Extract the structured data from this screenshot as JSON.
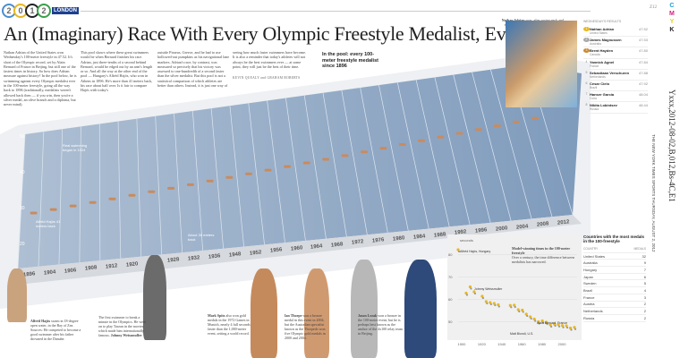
{
  "masthead": {
    "digits": [
      "2",
      "0",
      "1",
      "2"
    ],
    "city": "LONDON",
    "section_code": "Z12",
    "cmyk": [
      "C",
      "M",
      "Y",
      "K"
    ]
  },
  "headline": "An (Imaginary) Race With Every Olympic Freestyle Medalist, Ever",
  "body_columns": [
    "Nathan Adrian of the United States won Wednesday's 100-meter freestyle in 47.52. It's short of the Olympic record, set by Alain Bernard of France in Beijing, but still one of the fastest times in history. So how does Adrian measure against history? In the pool below, he is swimming against every Olympic medalist ever in the 100-meter freestyle, going all the way back to 1896 (traditionally, medalists weren't allowed back then — if you win, then you're a silver medal, an olive branch and a diploma, but never mind).",
    "This pool shows where these great swimmers would be when Bernard finishes his race. Adrian, just three-tenths of a second behind Bernard, would be edged out by an arm's length or so. And all the way at the other end of the pool — Hungary's Alfréd Hajós, who won in Athens in 1896. He's more than 41 meters back, his race about half over. Is it fair to compare Hajós with today's",
    "outside Piraeus, Greece, and he had to use hollowed-out pumpkins as his navigational lane markers. Adrian's race, by contrast, was measured so precisely that his victory was assessed to one-hundredth of a second faster than the silver medalist. But this pool is not a statistical comparison of which athletes are better than others. Instead, it is just one way of",
    "seeing how much faster swimmers have become. It is also a reminder that today's athletes will not always be the best swimmers ever — at some point, they will just be the best of their time."
  ],
  "byline": "KEVIN QUEALY and GRAHAM ROBERTS",
  "pool_callout": "In the pool: every 100-meter freestyle medalist since 1896",
  "pool": {
    "distance_labels": [
      "50",
      "40",
      "30",
      "20"
    ],
    "years": [
      "1896",
      "1904",
      "1906",
      "1908",
      "1912",
      "1920",
      "1924",
      "1928",
      "1932",
      "1936",
      "1948",
      "1952",
      "1956",
      "1960",
      "1964",
      "1968",
      "1972",
      "1976",
      "1980",
      "1984",
      "1988",
      "1992",
      "1996",
      "2000",
      "2004",
      "2008",
      "2012"
    ],
    "annotations": [
      "Real swimming began in 1924",
      "Alfréd Hajós 41 meters back",
      "About 30 meters back"
    ]
  },
  "photo_caption": {
    "name": "Nathan Adrian",
    "text": "won, after racing neck and neck with James Magnussen of Australia.",
    "credit": "DOUG MILLS/THE NEW YORK TIMES"
  },
  "results": {
    "title": "WEDNESDAY'S RESULTS",
    "rows": [
      {
        "rank": "1",
        "name": "Nathan Adrian",
        "country": "United States",
        "time": "47.52",
        "medal": "#e8b820"
      },
      {
        "rank": "2",
        "name": "James Magnussen",
        "country": "Australia",
        "time": "47.53",
        "medal": "#a8a8a8"
      },
      {
        "rank": "3",
        "name": "Brent Hayden",
        "country": "Canada",
        "time": "47.80",
        "medal": "#c88a30"
      },
      {
        "rank": "4",
        "name": "Yannick Agnel",
        "country": "France",
        "time": "47.84",
        "medal": ""
      },
      {
        "rank": "5",
        "name": "Sebastiaan Verschuren",
        "country": "Netherlands",
        "time": "47.88",
        "medal": ""
      },
      {
        "rank": "6",
        "name": "Cesar Cielo",
        "country": "Brazil",
        "time": "47.92",
        "medal": ""
      },
      {
        "rank": "7",
        "name": "Hanser Garcia",
        "country": "Cuba",
        "time": "48.04",
        "medal": ""
      },
      {
        "rank": "8",
        "name": "Nikita Lobintsev",
        "country": "Russia",
        "time": "48.44",
        "medal": ""
      }
    ]
  },
  "dateline": "THE NEW YORK TIMES SPORTS THURSDAY, AUGUST 2, 2012",
  "slug": "Yxxx,2012-08-02,B,012,Bs-4C,E1",
  "captions": [
    {
      "name": "Alfréd Hajós",
      "text": "swam in 18-degree open water, in the Bay of Zea. Sources: He competed to become a good swimmer after his father drowned in the Danube."
    },
    {
      "name": "Johnny Weissmuller",
      "text": "The first swimmer to break a minute in the Olympics. He went on to play Tarzan in the movies, which made him internationally famous."
    },
    {
      "name": "Mark Spitz",
      "text": "also won gold medals in the 1972 Games in Munich, nearly 4 full seconds faster than the 1,000-meter event, setting a world record."
    },
    {
      "name": "Ian Thorpe",
      "text": "won a bronze medal in this event in 2004, but the Australian specialist known as the Thorpedo won five Olympic gold medals in 2000 and 2004."
    },
    {
      "name": "Jason Lezak",
      "text": "won a bronze in the 100-meter event, but he is perhaps best known as the anchor of the 4x100 relay team in Beijing."
    }
  ],
  "chart_data": {
    "type": "scatter",
    "title": "Model-winning times in the 100-meter freestyle",
    "subtitle": "Over a century, the time difference between medalists has narrowed.",
    "xlabel": "",
    "ylabel": "seconds",
    "xlim": [
      1896,
      2012
    ],
    "ylim": [
      45,
      85
    ],
    "x_ticks": [
      "1900",
      "1920",
      "1940",
      "1960",
      "1980",
      "2000"
    ],
    "y_ticks": [
      "80",
      "70",
      "60",
      "50"
    ],
    "x": [
      1896,
      1904,
      1908,
      1912,
      1920,
      1924,
      1928,
      1932,
      1936,
      1948,
      1952,
      1956,
      1960,
      1964,
      1968,
      1972,
      1976,
      1980,
      1984,
      1988,
      1992,
      1996,
      2000,
      2004,
      2008,
      2012
    ],
    "y": [
      82.2,
      62.8,
      65.6,
      63.4,
      61.4,
      59.0,
      58.6,
      58.2,
      57.6,
      57.3,
      57.4,
      55.4,
      55.2,
      53.4,
      52.2,
      51.2,
      50.0,
      50.4,
      49.8,
      48.6,
      49.0,
      48.7,
      48.3,
      48.2,
      47.2,
      47.5
    ],
    "annotations": [
      "Alfréd Hajós, Hungary",
      "Matt Biondi, U.S.",
      "Alain Bernard, France",
      "Johnny Weissmuller"
    ]
  },
  "countries": {
    "title": "Countries with the most medals in the 100-freestyle",
    "headers": [
      "COUNTRY",
      "MEDALS"
    ],
    "rows": [
      [
        "United States",
        "32"
      ],
      [
        "Australia",
        "9"
      ],
      [
        "Hungary",
        "7"
      ],
      [
        "Japan",
        "6"
      ],
      [
        "Sweden",
        "5"
      ],
      [
        "Brazil",
        "4"
      ],
      [
        "France",
        "3"
      ],
      [
        "Austria",
        "2"
      ],
      [
        "Netherlands",
        "2"
      ],
      [
        "Russia",
        "2"
      ]
    ]
  }
}
